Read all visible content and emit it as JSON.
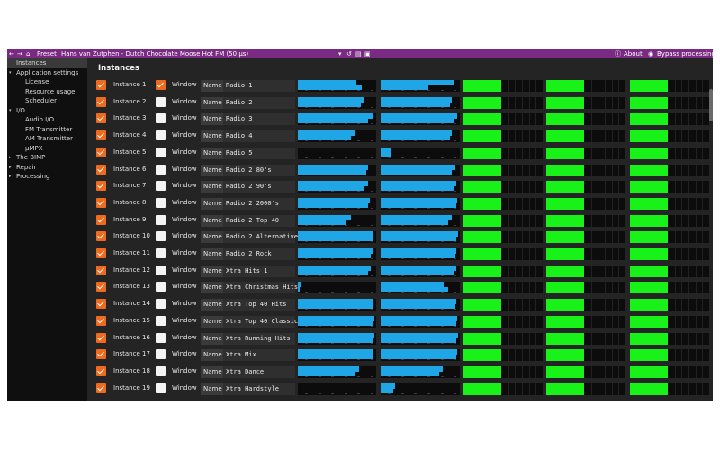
{
  "titlebar": {
    "preset_label": "Preset",
    "preset_name": "Hans van Zutphen - Dutch Chocolate Moose Hot FM (50 µs)",
    "about_label": "About",
    "bypass_label": "Bypass processing",
    "colors": {
      "bar": "#7a2a82"
    }
  },
  "sidebar": {
    "items": [
      {
        "label": "Instances",
        "level": 0,
        "selected": true
      },
      {
        "label": "Application settings",
        "level": 0,
        "caret": "open"
      },
      {
        "label": "License",
        "level": 1
      },
      {
        "label": "Resource usage",
        "level": 1
      },
      {
        "label": "Scheduler",
        "level": 1
      },
      {
        "label": "I/O",
        "level": 0,
        "caret": "open"
      },
      {
        "label": "Audio I/O",
        "level": 1
      },
      {
        "label": "FM Transmitter",
        "level": 1
      },
      {
        "label": "AM Transmitter",
        "level": 1
      },
      {
        "label": "µMPX",
        "level": 1
      },
      {
        "label": "The BIMP",
        "level": 0,
        "caret": "closed"
      },
      {
        "label": "Repair",
        "level": 0,
        "caret": "closed"
      },
      {
        "label": "Processing",
        "level": 0,
        "caret": "closed"
      }
    ]
  },
  "main": {
    "heading": "Instances",
    "window_label": "Window",
    "name_label": "Name",
    "colors": {
      "checkbox": "#ee6a1e",
      "input_meter": "#1fa6e6",
      "output_meter": "#19f219"
    },
    "instances": [
      {
        "label": "Instance 1",
        "enabled": true,
        "window": true,
        "name": "Radio 1",
        "m1": [
          0.75,
          0.82
        ],
        "m2": [
          0.92,
          0.6
        ],
        "g": [
          1,
          1,
          1,
          1
        ]
      },
      {
        "label": "Instance 2",
        "enabled": true,
        "window": false,
        "name": "Radio 2",
        "m1": [
          0.85,
          0.8
        ],
        "m2": [
          0.9,
          0.88
        ],
        "g": [
          1,
          1,
          1,
          1
        ]
      },
      {
        "label": "Instance 3",
        "enabled": true,
        "window": false,
        "name": "Radio 3",
        "m1": [
          0.95,
          0.9
        ],
        "m2": [
          0.97,
          0.93
        ],
        "g": [
          1,
          1,
          1,
          1
        ]
      },
      {
        "label": "Instance 4",
        "enabled": true,
        "window": false,
        "name": "Radio 4",
        "m1": [
          0.72,
          0.68
        ],
        "m2": [
          0.9,
          0.88
        ],
        "g": [
          1,
          1,
          1,
          1
        ]
      },
      {
        "label": "Instance 5",
        "enabled": true,
        "window": false,
        "name": "Radio 5",
        "m1": [
          0.0,
          0.0
        ],
        "m2": [
          0.14,
          0.12
        ],
        "g": [
          1,
          1,
          1,
          1
        ]
      },
      {
        "label": "Instance 6",
        "enabled": true,
        "window": false,
        "name": "Radio 2 80's",
        "m1": [
          0.9,
          0.87
        ],
        "m2": [
          0.94,
          0.9
        ],
        "g": [
          1,
          1,
          1,
          1
        ]
      },
      {
        "label": "Instance 7",
        "enabled": true,
        "window": false,
        "name": "Radio 2 90's",
        "m1": [
          0.9,
          0.85
        ],
        "m2": [
          0.96,
          0.93
        ],
        "g": [
          1,
          1,
          1,
          1
        ]
      },
      {
        "label": "Instance 8",
        "enabled": true,
        "window": false,
        "name": "Radio 2 2000's",
        "m1": [
          0.92,
          0.9
        ],
        "m2": [
          0.97,
          0.95
        ],
        "g": [
          1,
          1,
          1,
          1
        ]
      },
      {
        "label": "Instance 9",
        "enabled": true,
        "window": false,
        "name": "Radio 2 Top 40",
        "m1": [
          0.68,
          0.62
        ],
        "m2": [
          0.9,
          0.85
        ],
        "g": [
          1,
          1,
          1,
          1
        ]
      },
      {
        "label": "Instance 10",
        "enabled": true,
        "window": false,
        "name": "Radio 2 Alternative",
        "m1": [
          0.97,
          0.95
        ],
        "m2": [
          0.98,
          0.96
        ],
        "g": [
          1,
          1,
          1,
          1
        ]
      },
      {
        "label": "Instance 11",
        "enabled": true,
        "window": false,
        "name": "Radio 2 Rock",
        "m1": [
          0.95,
          0.93
        ],
        "m2": [
          0.96,
          0.94
        ],
        "g": [
          1,
          1,
          1,
          1
        ]
      },
      {
        "label": "Instance 12",
        "enabled": true,
        "window": false,
        "name": "Xtra Hits 1",
        "m1": [
          0.93,
          0.9
        ],
        "m2": [
          0.95,
          0.92
        ],
        "g": [
          1,
          1,
          1,
          1
        ]
      },
      {
        "label": "Instance 13",
        "enabled": true,
        "window": false,
        "name": "Xtra Christmas Hits",
        "m1": [
          0.03,
          0.02
        ],
        "m2": [
          0.8,
          0.85
        ],
        "g": [
          1,
          1,
          1,
          1
        ]
      },
      {
        "label": "Instance 14",
        "enabled": true,
        "window": false,
        "name": "Xtra Top 40 Hits",
        "m1": [
          0.97,
          0.95
        ],
        "m2": [
          0.96,
          0.94
        ],
        "g": [
          1,
          1,
          1,
          1
        ]
      },
      {
        "label": "Instance 15",
        "enabled": true,
        "window": false,
        "name": "Xtra Top 40 Classic",
        "m1": [
          0.98,
          0.97
        ],
        "m2": [
          0.97,
          0.96
        ],
        "g": [
          1,
          1,
          1,
          1
        ]
      },
      {
        "label": "Instance 16",
        "enabled": true,
        "window": false,
        "name": "Xtra Running Hits",
        "m1": [
          0.98,
          0.96
        ],
        "m2": [
          0.98,
          0.95
        ],
        "g": [
          1,
          1,
          1,
          1
        ]
      },
      {
        "label": "Instance 17",
        "enabled": true,
        "window": false,
        "name": "Xtra Mix",
        "m1": [
          0.97,
          0.95
        ],
        "m2": [
          0.97,
          0.95
        ],
        "g": [
          1,
          1,
          1,
          1
        ]
      },
      {
        "label": "Instance 18",
        "enabled": true,
        "window": false,
        "name": "Xtra Dance",
        "m1": [
          0.78,
          0.72
        ],
        "m2": [
          0.78,
          0.74
        ],
        "g": [
          1,
          1,
          1,
          1
        ]
      },
      {
        "label": "Instance 19",
        "enabled": true,
        "window": false,
        "name": "Xtra Hardstyle",
        "m1": [
          0.0,
          0.0
        ],
        "m2": [
          0.18,
          0.16
        ],
        "g": [
          1,
          1,
          1,
          1
        ]
      }
    ]
  }
}
